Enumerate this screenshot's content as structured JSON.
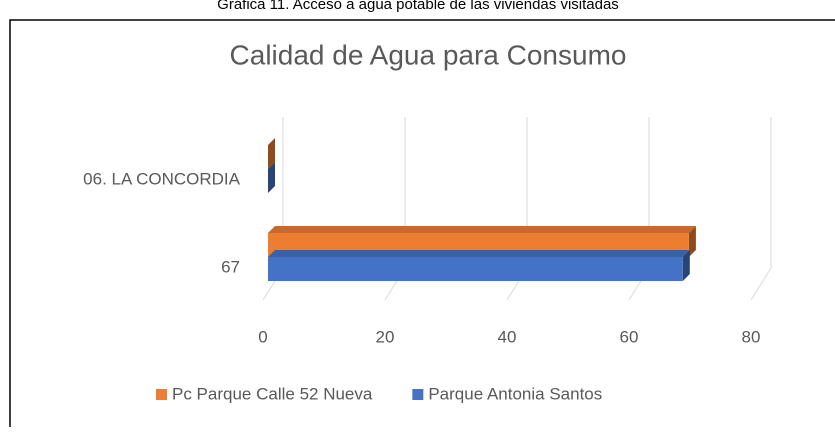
{
  "caption": "Gráfica 11. Acceso a agua potable de las viviendas visitadas",
  "chart_data": {
    "type": "bar",
    "orientation": "horizontal",
    "title": "Calidad de Agua para Consumo",
    "categories": [
      "67",
      "06. LA CONCORDIA"
    ],
    "series": [
      {
        "name": "Pc Parque Calle 52 Nueva",
        "color": "#ed7d31",
        "values": [
          69,
          0
        ]
      },
      {
        "name": "Parque Antonia Santos",
        "color": "#4472c4",
        "values": [
          68,
          0
        ]
      }
    ],
    "xlim": [
      0,
      80
    ],
    "xticks": [
      0,
      20,
      40,
      60,
      80
    ],
    "grid": true,
    "legend": "bottom"
  }
}
